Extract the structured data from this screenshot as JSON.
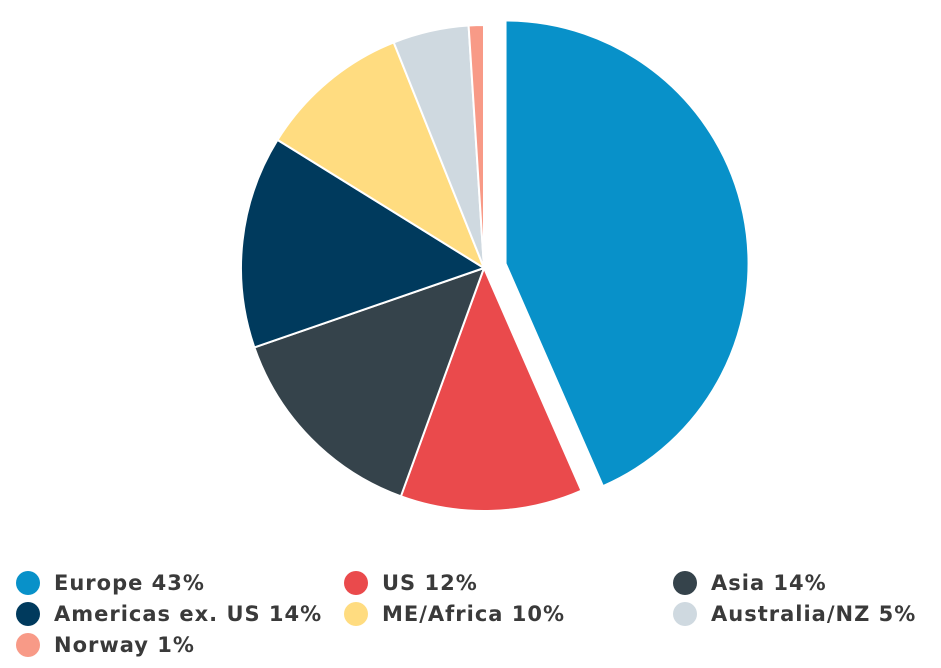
{
  "chart_data": {
    "type": "pie",
    "title": "",
    "slices": [
      {
        "label": "Europe 43%",
        "name": "Europe",
        "value": 43,
        "color": "#0891c9",
        "exploded": true
      },
      {
        "label": "US 12%",
        "name": "US",
        "value": 12,
        "color": "#ea4a4c"
      },
      {
        "label": "Asia 14%",
        "name": "Asia",
        "value": 14,
        "color": "#35434b"
      },
      {
        "label": "Americas ex. US 14%",
        "name": "Americas ex. US",
        "value": 14,
        "color": "#003a5d"
      },
      {
        "label": "ME/Africa 10%",
        "name": "ME/Africa",
        "value": 10,
        "color": "#ffdc80"
      },
      {
        "label": "Australia/NZ 5%",
        "name": "Australia/NZ",
        "value": 5,
        "color": "#cfd9e0"
      },
      {
        "label": "Norway 1%",
        "name": "Norway",
        "value": 1,
        "color": "#f89a87"
      }
    ],
    "legend_position": "bottom"
  }
}
